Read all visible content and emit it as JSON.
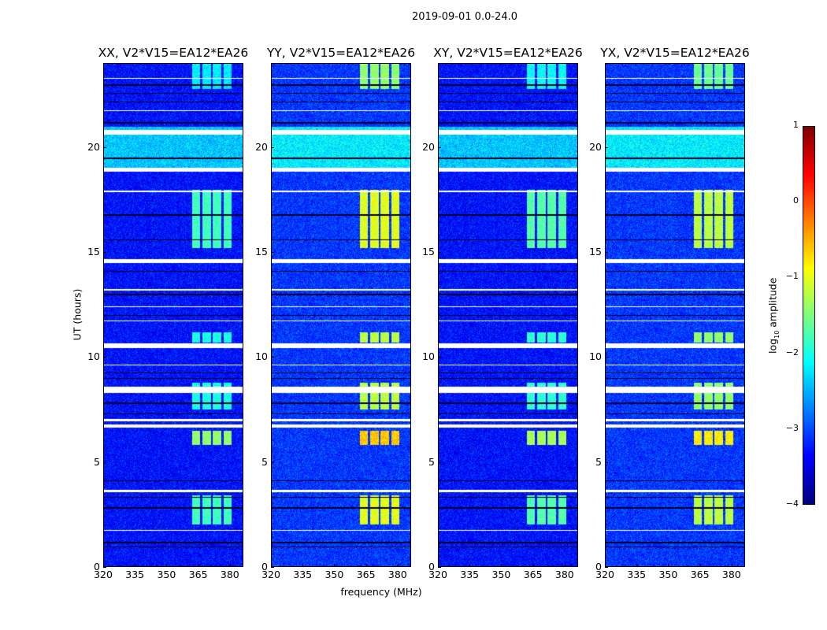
{
  "chart_data": {
    "type": "heatmap",
    "title": "2019-09-01 0.0-24.0",
    "xlabel": "frequency (MHz)",
    "ylabel": "UT (hours)",
    "xlim": [
      320,
      386.4
    ],
    "ylim": [
      0,
      24
    ],
    "xticks": [
      320,
      335,
      350,
      365,
      380
    ],
    "yticks": [
      0,
      5,
      10,
      15,
      20
    ],
    "panels": [
      {
        "title": "XX, V2*V15=EA12*EA26",
        "rfi_gain": 0.0,
        "background_offset": 0.0
      },
      {
        "title": "YY, V2*V15=EA12*EA26",
        "rfi_gain": 0.8,
        "background_offset": 0.2
      },
      {
        "title": "XY, V2*V15=EA12*EA26",
        "rfi_gain": 0.1,
        "background_offset": 0.0
      },
      {
        "title": "YX, V2*V15=EA12*EA26",
        "rfi_gain": 0.6,
        "background_offset": 0.2
      }
    ],
    "background_level_log10": -3.3,
    "elevated_background": [
      {
        "hours": [
          19.0,
          21.0
        ],
        "level_log10": -2.4
      }
    ],
    "rfi_channels_mhz": [
      [
        362,
        366
      ],
      [
        367,
        371
      ],
      [
        372,
        376
      ],
      [
        377,
        381
      ]
    ],
    "rfi_events": [
      {
        "hours": [
          2.0,
          3.4
        ],
        "level_log10": -1.8
      },
      {
        "hours": [
          5.8,
          6.5
        ],
        "level_log10": -1.4
      },
      {
        "hours": [
          7.5,
          8.8
        ],
        "level_log10": -2.0
      },
      {
        "hours": [
          10.7,
          11.2
        ],
        "level_log10": -2.0
      },
      {
        "hours": [
          15.2,
          18.0
        ],
        "level_log10": -1.8
      },
      {
        "hours": [
          22.8,
          24.0
        ],
        "level_log10": -2.2
      }
    ],
    "flagged_hours": [
      [
        20.65,
        20.85
      ],
      [
        18.85,
        19.05
      ],
      [
        14.5,
        14.7
      ],
      [
        10.45,
        10.65
      ],
      [
        8.3,
        8.6
      ],
      [
        6.95,
        7.05
      ],
      [
        6.65,
        6.8
      ],
      [
        3.55,
        3.65
      ],
      [
        23.3,
        23.35
      ],
      [
        21.75,
        21.8
      ],
      [
        17.9,
        17.95
      ],
      [
        13.2,
        13.25
      ],
      [
        12.4,
        12.45
      ],
      [
        11.7,
        11.75
      ],
      [
        9.6,
        9.65
      ],
      [
        1.7,
        1.75
      ]
    ],
    "black_rows_hours": [
      0.95,
      1.15,
      2.8,
      3.3,
      4.1,
      7.3,
      7.8,
      9.0,
      9.25,
      12.0,
      13.0,
      14.1,
      15.6,
      16.8,
      19.5,
      21.2,
      22.2,
      22.6,
      23.0
    ],
    "colorbar": {
      "label": "log10 amplitude",
      "label_main": "log",
      "label_sub": "10",
      "label_rest": " amplitude",
      "range": [
        -4,
        1
      ],
      "ticks": [
        -4,
        -3,
        -2,
        -1,
        0,
        1
      ],
      "tick_labels": [
        "−4",
        "−3",
        "−2",
        "−1",
        "0",
        "1"
      ],
      "colormap": "jet"
    }
  }
}
